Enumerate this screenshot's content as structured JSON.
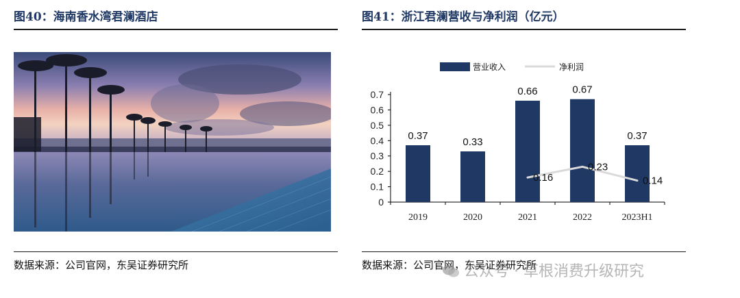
{
  "left_figure": {
    "title": "图40：海南香水湾君澜酒店",
    "source": "数据来源：公司官网，东吴证券研究所",
    "photo_description_icon": "resort-photo"
  },
  "right_figure": {
    "title": "图41：浙江君澜营收与净利润（亿元）",
    "source": "数据来源：公司官网，东吴证券研究所"
  },
  "watermark": {
    "text": "公众号 · 草根消费升级研究",
    "icon": "wechat-icon"
  },
  "colors": {
    "bar": "#1f3864",
    "line": "#d9d9d9",
    "title": "#1f3864"
  },
  "chart_data": {
    "type": "bar",
    "categories": [
      "2019",
      "2020",
      "2021",
      "2022",
      "2023H1"
    ],
    "series": [
      {
        "name": "营业收入",
        "kind": "bar",
        "values": [
          0.37,
          0.33,
          0.66,
          0.67,
          0.37
        ]
      },
      {
        "name": "净利润",
        "kind": "line",
        "values": [
          null,
          null,
          0.16,
          0.23,
          0.14
        ]
      }
    ],
    "ylim": [
      0,
      0.7
    ],
    "yticks": [
      "0",
      "0.1",
      "0.2",
      "0.3",
      "0.4",
      "0.5",
      "0.6",
      "0.7"
    ],
    "title": "",
    "xlabel": "",
    "ylabel": "",
    "legend": "top-center",
    "grid": false
  }
}
